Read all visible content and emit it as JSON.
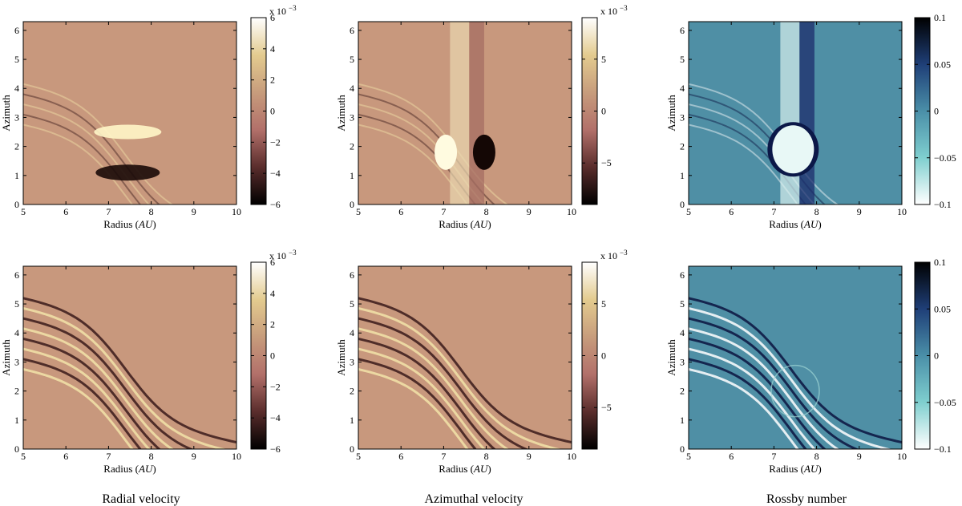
{
  "chart_data": [
    {
      "type": "heatmap",
      "panel": "radial-velocity-top",
      "xlabel": "Radius (AU)",
      "ylabel": "Azimuth",
      "xlim": [
        5,
        10
      ],
      "ylim": [
        0,
        6.3
      ],
      "xticks": [
        "5",
        "6",
        "7",
        "8",
        "9",
        "10"
      ],
      "yticks": [
        "0",
        "1",
        "2",
        "3",
        "4",
        "5",
        "6"
      ],
      "colorbar": {
        "range": [
          -6,
          6
        ],
        "ticks": [
          "6",
          "4",
          "2",
          "0",
          "−2",
          "−4",
          "−6"
        ],
        "tick_values": [
          6,
          4,
          2,
          0,
          -2,
          -4,
          -6
        ],
        "exponent_base": "x 10",
        "exponent_power": "−3",
        "colors": [
          "#000000",
          "#5a2d2c",
          "#b2706a",
          "#c79c7c",
          "#e3cb8f",
          "#ffffff"
        ]
      },
      "features": [
        "vortex",
        "spiral"
      ]
    },
    {
      "type": "heatmap",
      "panel": "azimuthal-velocity-top",
      "xlabel": "Radius (AU)",
      "ylabel": "Azimuth",
      "xlim": [
        5,
        10
      ],
      "ylim": [
        0,
        6.3
      ],
      "xticks": [
        "5",
        "6",
        "7",
        "8",
        "9",
        "10"
      ],
      "yticks": [
        "0",
        "1",
        "2",
        "3",
        "4",
        "5",
        "6"
      ],
      "colorbar": {
        "range": [
          -9,
          9
        ],
        "ticks": [
          "5",
          "0",
          "−5"
        ],
        "tick_values": [
          5,
          0,
          -5
        ],
        "exponent_base": "x 10",
        "exponent_power": "−3",
        "colors": [
          "#000000",
          "#5a2d2c",
          "#b2706a",
          "#c79c7c",
          "#e3cb8f",
          "#ffffff"
        ]
      },
      "features": [
        "band",
        "vortex",
        "spiral"
      ]
    },
    {
      "type": "heatmap",
      "panel": "rossby-number-top",
      "xlabel": "Radius (AU)",
      "ylabel": "Azimuth",
      "xlim": [
        5,
        10
      ],
      "ylim": [
        0,
        6.3
      ],
      "xticks": [
        "5",
        "6",
        "7",
        "8",
        "9",
        "10"
      ],
      "yticks": [
        "0",
        "1",
        "2",
        "3",
        "4",
        "5",
        "6"
      ],
      "colorbar": {
        "range": [
          -0.1,
          0.1
        ],
        "ticks": [
          "0.1",
          "0.05",
          "0",
          "−0.05",
          "−0.1"
        ],
        "tick_values": [
          0.1,
          0.05,
          0,
          -0.05,
          -0.1
        ],
        "colors": [
          "#ffffff",
          "#7fcfcf",
          "#4a8fa8",
          "#1f3f78",
          "#000000"
        ]
      },
      "features": [
        "band",
        "vortex",
        "spiral"
      ]
    },
    {
      "type": "heatmap",
      "panel": "radial-velocity-bottom",
      "xlabel": "Radius (AU)",
      "ylabel": "Azimuth",
      "xlim": [
        5,
        10
      ],
      "ylim": [
        0,
        6.3
      ],
      "xticks": [
        "5",
        "6",
        "7",
        "8",
        "9",
        "10"
      ],
      "yticks": [
        "0",
        "1",
        "2",
        "3",
        "4",
        "5",
        "6"
      ],
      "colorbar": {
        "range": [
          -6,
          6
        ],
        "ticks": [
          "6",
          "4",
          "2",
          "0",
          "−2",
          "−4",
          "−6"
        ],
        "tick_values": [
          6,
          4,
          2,
          0,
          -2,
          -4,
          -6
        ],
        "exponent_base": "x 10",
        "exponent_power": "−3",
        "colors": [
          "#000000",
          "#5a2d2c",
          "#b2706a",
          "#c79c7c",
          "#e3cb8f",
          "#ffffff"
        ]
      },
      "features": [
        "spiral"
      ]
    },
    {
      "type": "heatmap",
      "panel": "azimuthal-velocity-bottom",
      "xlabel": "Radius (AU)",
      "ylabel": "Azimuth",
      "xlim": [
        5,
        10
      ],
      "ylim": [
        0,
        6.3
      ],
      "xticks": [
        "5",
        "6",
        "7",
        "8",
        "9",
        "10"
      ],
      "yticks": [
        "0",
        "1",
        "2",
        "3",
        "4",
        "5",
        "6"
      ],
      "colorbar": {
        "range": [
          -9,
          9
        ],
        "ticks": [
          "5",
          "0",
          "−5"
        ],
        "tick_values": [
          5,
          0,
          -5
        ],
        "exponent_base": "x 10",
        "exponent_power": "−3",
        "colors": [
          "#000000",
          "#5a2d2c",
          "#b2706a",
          "#c79c7c",
          "#e3cb8f",
          "#ffffff"
        ]
      },
      "features": [
        "spiral"
      ]
    },
    {
      "type": "heatmap",
      "panel": "rossby-number-bottom",
      "xlabel": "Radius (AU)",
      "ylabel": "Azimuth",
      "xlim": [
        5,
        10
      ],
      "ylim": [
        0,
        6.3
      ],
      "xticks": [
        "5",
        "6",
        "7",
        "8",
        "9",
        "10"
      ],
      "yticks": [
        "0",
        "1",
        "2",
        "3",
        "4",
        "5",
        "6"
      ],
      "colorbar": {
        "range": [
          -0.1,
          0.1
        ],
        "ticks": [
          "0.1",
          "0.05",
          "0",
          "−0.05",
          "−0.1"
        ],
        "tick_values": [
          0.1,
          0.05,
          0,
          -0.05,
          -0.1
        ],
        "colors": [
          "#ffffff",
          "#7fcfcf",
          "#4a8fa8",
          "#1f3f78",
          "#000000"
        ]
      },
      "features": [
        "spiral",
        "ring"
      ]
    }
  ],
  "captions": {
    "radial": "Radial velocity",
    "azimuthal": "Azimuthal velocity",
    "rossby": "Rossby number"
  },
  "colors": {
    "velocity_background": "#c8987d",
    "rossby_background": "#4f8fa5"
  }
}
